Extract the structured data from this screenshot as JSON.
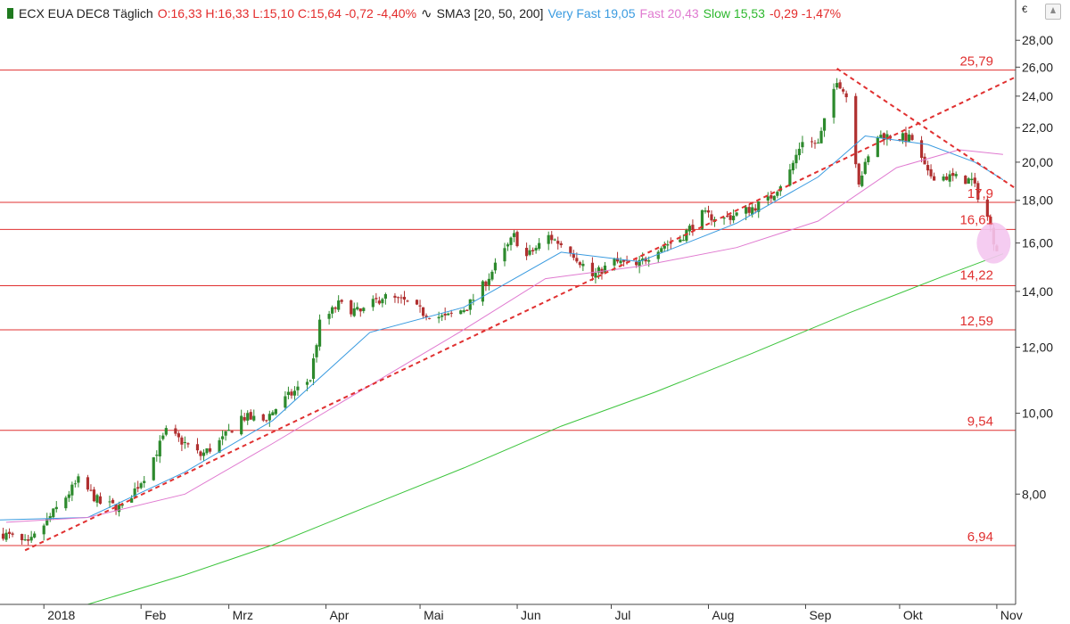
{
  "legend": {
    "instrument": "ECX EUA DEC8 Täglich",
    "ohlc": "O:16,33 H:16,33 L:15,10 C:15,64 -0,72 -4,40%",
    "indicator": "SMA3 [20, 50, 200]",
    "very_fast": "Very Fast 19,05",
    "fast": "Fast 20,43",
    "slow": "Slow 15,53",
    "slow_change": "-0,29 -1,47%"
  },
  "colors": {
    "up_candle": "#2d8a2d",
    "down_candle": "#b03030",
    "very_fast": "#3a9be0",
    "fast": "#e07ad0",
    "slow": "#3cc43c",
    "level_line": "#e03030",
    "highlight": "#f4c6ef"
  },
  "icons": {
    "legend_marker": "candle-icon",
    "indicator_marker": "wave-icon",
    "corner_button": "triangle-up-icon"
  },
  "chart_data": {
    "type": "candlestick",
    "instrument": "ECX EUA DEC8",
    "interval": "Täglich",
    "y_unit": "€",
    "y_scale": "log",
    "ylim": [
      5.9,
      29.5
    ],
    "y_ticks": [
      "8,00",
      "10,00",
      "12,00",
      "14,00",
      "16,00",
      "18,00",
      "20,00",
      "22,00",
      "24,00",
      "26,00",
      "28,00"
    ],
    "y_tick_values": [
      8,
      10,
      12,
      14,
      16,
      18,
      20,
      22,
      24,
      26,
      28
    ],
    "x_range": [
      "2017-12-18",
      "2018-11-07"
    ],
    "x_ticks": [
      {
        "label": "2018",
        "date": "2018-01-01"
      },
      {
        "label": "Feb",
        "date": "2018-02-01"
      },
      {
        "label": "Mrz",
        "date": "2018-03-01"
      },
      {
        "label": "Apr",
        "date": "2018-04-01"
      },
      {
        "label": "Mai",
        "date": "2018-05-01"
      },
      {
        "label": "Jun",
        "date": "2018-06-01"
      },
      {
        "label": "Jul",
        "date": "2018-07-01"
      },
      {
        "label": "Aug",
        "date": "2018-08-01"
      },
      {
        "label": "Sep",
        "date": "2018-09-01"
      },
      {
        "label": "Okt",
        "date": "2018-10-01"
      },
      {
        "label": "Nov",
        "date": "2018-11-01"
      }
    ],
    "price_path": [
      [
        "2017-12-18",
        7.2
      ],
      [
        "2017-12-27",
        6.95
      ],
      [
        "2018-01-04",
        7.6
      ],
      [
        "2018-01-12",
        8.3
      ],
      [
        "2018-01-19",
        7.8
      ],
      [
        "2018-01-26",
        7.7
      ],
      [
        "2018-02-02",
        8.4
      ],
      [
        "2018-02-09",
        9.5
      ],
      [
        "2018-02-15",
        9.2
      ],
      [
        "2018-02-20",
        8.9
      ],
      [
        "2018-02-27",
        9.3
      ],
      [
        "2018-03-05",
        9.9
      ],
      [
        "2018-03-12",
        9.8
      ],
      [
        "2018-03-19",
        10.4
      ],
      [
        "2018-03-27",
        11.0
      ],
      [
        "2018-03-30",
        12.8
      ],
      [
        "2018-04-05",
        13.5
      ],
      [
        "2018-04-12",
        13.2
      ],
      [
        "2018-04-19",
        13.8
      ],
      [
        "2018-04-26",
        13.6
      ],
      [
        "2018-05-02",
        13.2
      ],
      [
        "2018-05-09",
        13.0
      ],
      [
        "2018-05-16",
        13.4
      ],
      [
        "2018-05-21",
        14.2
      ],
      [
        "2018-05-25",
        15.0
      ],
      [
        "2018-05-31",
        16.3
      ],
      [
        "2018-06-04",
        15.4
      ],
      [
        "2018-06-11",
        16.3
      ],
      [
        "2018-06-18",
        15.7
      ],
      [
        "2018-06-25",
        14.6
      ],
      [
        "2018-07-02",
        15.2
      ],
      [
        "2018-07-09",
        15.0
      ],
      [
        "2018-07-16",
        15.8
      ],
      [
        "2018-07-23",
        16.2
      ],
      [
        "2018-07-30",
        17.3
      ],
      [
        "2018-08-06",
        17.1
      ],
      [
        "2018-08-13",
        17.5
      ],
      [
        "2018-08-20",
        18.0
      ],
      [
        "2018-08-27",
        19.5
      ],
      [
        "2018-08-31",
        21.3
      ],
      [
        "2018-09-05",
        21.0
      ],
      [
        "2018-09-11",
        25.2
      ],
      [
        "2018-09-14",
        24.0
      ],
      [
        "2018-09-18",
        19.0
      ],
      [
        "2018-09-24",
        21.5
      ],
      [
        "2018-09-28",
        21.5
      ],
      [
        "2018-10-05",
        21.3
      ],
      [
        "2018-10-10",
        19.3
      ],
      [
        "2018-10-17",
        19.2
      ],
      [
        "2018-10-24",
        19.0
      ],
      [
        "2018-10-29",
        17.2
      ],
      [
        "2018-11-01",
        15.64
      ]
    ],
    "series": [
      {
        "name": "Very Fast",
        "period": 20,
        "last": 19.05,
        "points": [
          [
            "2017-12-18",
            7.45
          ],
          [
            "2018-01-15",
            7.5
          ],
          [
            "2018-02-15",
            8.5
          ],
          [
            "2018-03-15",
            9.8
          ],
          [
            "2018-04-15",
            12.5
          ],
          [
            "2018-05-15",
            13.4
          ],
          [
            "2018-06-15",
            15.6
          ],
          [
            "2018-07-10",
            15.2
          ],
          [
            "2018-08-10",
            16.9
          ],
          [
            "2018-09-05",
            19.2
          ],
          [
            "2018-09-20",
            21.5
          ],
          [
            "2018-10-10",
            21.0
          ],
          [
            "2018-10-25",
            20.0
          ],
          [
            "2018-11-03",
            19.05
          ]
        ]
      },
      {
        "name": "Fast",
        "period": 50,
        "last": 20.43,
        "points": [
          [
            "2017-12-20",
            7.4
          ],
          [
            "2018-01-15",
            7.5
          ],
          [
            "2018-02-15",
            8.0
          ],
          [
            "2018-03-15",
            9.2
          ],
          [
            "2018-04-15",
            10.8
          ],
          [
            "2018-05-15",
            12.6
          ],
          [
            "2018-06-10",
            14.5
          ],
          [
            "2018-07-10",
            15.0
          ],
          [
            "2018-08-10",
            15.8
          ],
          [
            "2018-09-05",
            17.0
          ],
          [
            "2018-09-30",
            19.7
          ],
          [
            "2018-10-20",
            20.7
          ],
          [
            "2018-11-03",
            20.43
          ]
        ]
      },
      {
        "name": "Slow",
        "period": 200,
        "last": 15.53,
        "points": [
          [
            "2018-01-15",
            5.9
          ],
          [
            "2018-02-15",
            6.4
          ],
          [
            "2018-03-15",
            6.95
          ],
          [
            "2018-04-15",
            7.75
          ],
          [
            "2018-05-15",
            8.6
          ],
          [
            "2018-06-15",
            9.65
          ],
          [
            "2018-07-15",
            10.6
          ],
          [
            "2018-08-15",
            11.8
          ],
          [
            "2018-09-15",
            13.2
          ],
          [
            "2018-10-15",
            14.6
          ],
          [
            "2018-11-03",
            15.53
          ]
        ]
      }
    ],
    "horizontal_levels": [
      {
        "label": "25,79",
        "value": 25.79
      },
      {
        "label": "17,9",
        "value": 17.9
      },
      {
        "label": "16,61",
        "value": 16.61
      },
      {
        "label": "14,22",
        "value": 14.22
      },
      {
        "label": "12,59",
        "value": 12.59
      },
      {
        "label": "9,54",
        "value": 9.54
      },
      {
        "label": "6,94",
        "value": 6.94
      }
    ],
    "trendlines": [
      {
        "from": [
          "2017-12-26",
          6.85
        ],
        "to": [
          "2018-11-07",
          25.3
        ]
      },
      {
        "from": [
          "2018-09-11",
          25.9
        ],
        "to": [
          "2018-11-07",
          18.6
        ]
      }
    ],
    "highlight": {
      "date": "2018-10-31",
      "value": 16.0
    }
  }
}
